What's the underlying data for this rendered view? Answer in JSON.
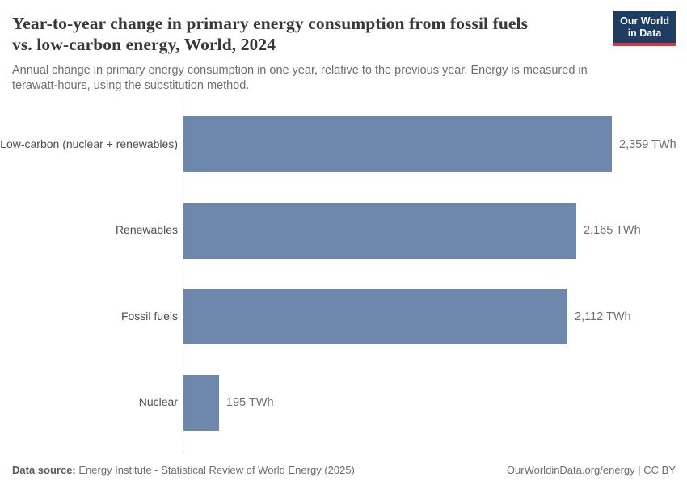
{
  "header": {
    "title": "Year-to-year change in primary energy consumption from fossil fuels vs. low-carbon energy, World, 2024",
    "title_lines": [
      "Year-to-year change in primary energy consumption from fossil fuels",
      "vs. low-carbon energy, World, 2024"
    ],
    "subtitle_lines": [
      "Annual change in primary energy consumption in one year, relative to the previous year. Energy is measured in",
      "terawatt-hours, using the substitution method."
    ],
    "logo": {
      "line1": "Our World",
      "line2": "in Data",
      "bg_color": "#1d3d63",
      "accent_color": "#dc3549"
    }
  },
  "chart_data": {
    "type": "bar",
    "orientation": "horizontal",
    "categories": [
      "Low-carbon (nuclear + renewables)",
      "Renewables",
      "Fossil fuels",
      "Nuclear"
    ],
    "values": [
      2359,
      2165,
      2112,
      195
    ],
    "value_labels": [
      "2,359 TWh",
      "2,165 TWh",
      "2,112 TWh",
      "195 TWh"
    ],
    "unit": "TWh",
    "xlim": [
      0,
      2359
    ],
    "bar_color": "#6d87ad",
    "axis_color": "#d9d9d9",
    "grid": false,
    "legend": false
  },
  "footer": {
    "datasource_label": "Data source:",
    "datasource_text": " Energy Institute - Statistical Review of World Energy (2025)",
    "link_text": "OurWorldinData.org/energy",
    "separator": " | ",
    "license": "CC BY"
  }
}
